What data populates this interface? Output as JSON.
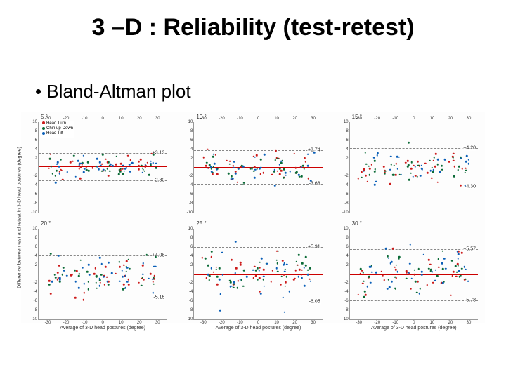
{
  "slide": {
    "title": "3 –D : Reliability (test-retest)",
    "subtitle": "Bland-Altman plot"
  },
  "figure": {
    "background_color": "#ffffff",
    "x_label": "Average of 3-D head postures (degree)",
    "y_label": "Difference between test and retest in 3-D head postures (degree)",
    "xlim": [
      -35,
      35
    ],
    "ylim": [
      -10,
      10
    ],
    "xticks": [
      -30,
      -20,
      -10,
      0,
      10,
      20,
      30
    ],
    "yticks_pos": [
      2,
      4,
      6,
      8,
      10
    ],
    "yticks_neg": [
      -2,
      -4,
      -6,
      -8,
      -10
    ],
    "series": [
      {
        "name": "Head Turn",
        "color": "#cc1a1a"
      },
      {
        "name": "Chin up-Down",
        "color": "#0a6a36"
      },
      {
        "name": "Head Tilt",
        "color": "#0a5fb8"
      }
    ],
    "panels": [
      {
        "title": "5 °",
        "upper": "+3.13",
        "lower": "-2.80",
        "bias": 0.17
      },
      {
        "title": "10 °",
        "upper": "+3.74",
        "lower": "-3.68",
        "bias": 0.03
      },
      {
        "title": "15 °",
        "upper": "+4.20",
        "lower": "-4.30",
        "bias": -0.05
      },
      {
        "title": "20 °",
        "upper": "+4.08",
        "lower": "-5.16",
        "bias": -0.54
      },
      {
        "title": "25 °",
        "upper": "+5.91",
        "lower": "-6.05",
        "bias": -0.07
      },
      {
        "title": "30 °",
        "upper": "+5.57",
        "lower": "-5.78",
        "bias": -0.1
      }
    ],
    "line_colors": {
      "limit": "#888888",
      "bias": "#cc0000"
    },
    "point_size": 2.5,
    "grid_color": "#dddddd"
  }
}
